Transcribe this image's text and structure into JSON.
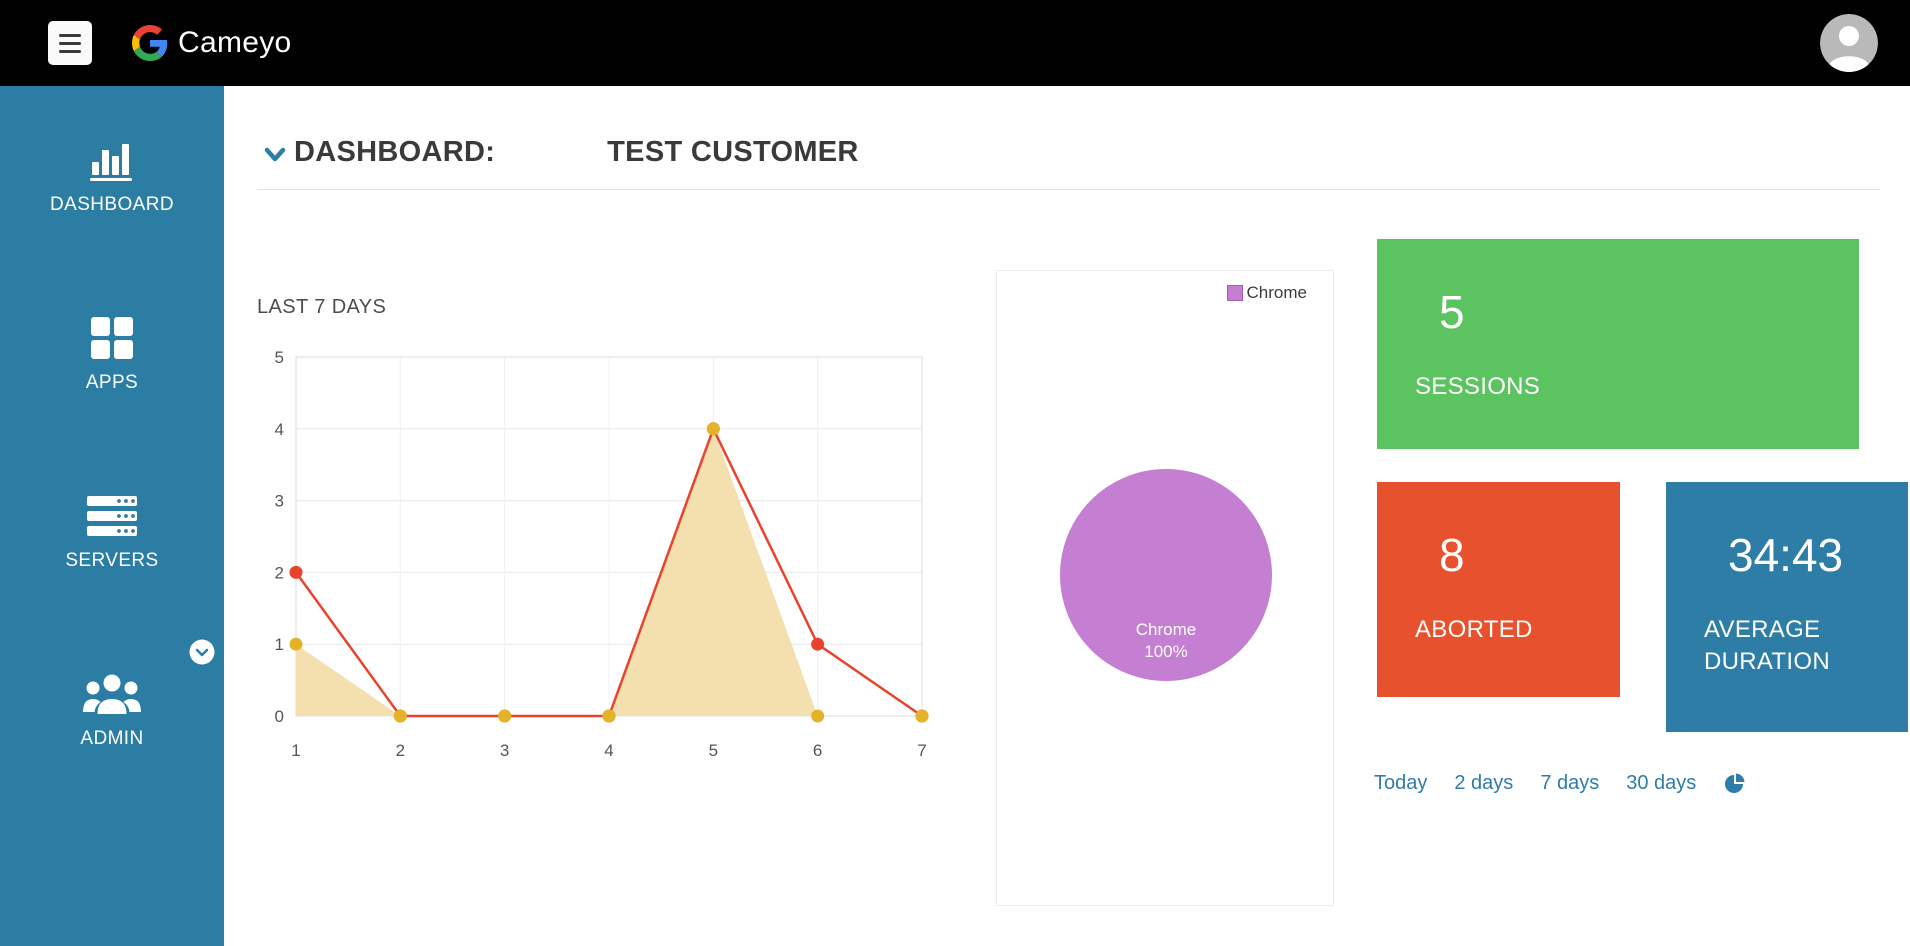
{
  "topbar": {
    "brand": "Cameyo"
  },
  "sidebar": {
    "items": [
      {
        "label": "DASHBOARD"
      },
      {
        "label": "APPS"
      },
      {
        "label": "SERVERS"
      },
      {
        "label": "ADMIN"
      }
    ]
  },
  "header": {
    "title": "DASHBOARD:",
    "customer": "TEST CUSTOMER"
  },
  "stats": {
    "sessions": {
      "value": "5",
      "label": "SESSIONS"
    },
    "aborted": {
      "value": "8",
      "label": "ABORTED"
    },
    "duration": {
      "value": "34:43",
      "label": "AVERAGE DURATION"
    }
  },
  "range_links": [
    "Today",
    "2 days",
    "7 days",
    "30 days"
  ],
  "colors": {
    "sidebar": "#2b7da3",
    "green": "#5bc35f",
    "red": "#e8512d",
    "blue": "#2e7da6",
    "purple": "#c57fd2",
    "link": "#2f7cab"
  },
  "chart_data": [
    {
      "type": "area",
      "title": "LAST 7 DAYS",
      "x": [
        1,
        2,
        3,
        4,
        5,
        6,
        7
      ],
      "xlabel": "",
      "ylabel": "",
      "ylim": [
        0,
        5
      ],
      "yticks": [
        0,
        1,
        2,
        3,
        4,
        5
      ],
      "grid": true,
      "legend_position": "none",
      "series": [
        {
          "name": "yellow-area-series",
          "style": "area",
          "values": [
            1,
            0,
            0,
            0,
            4,
            0,
            0
          ],
          "fill": "#f3dda6",
          "dot": "#e5b32a"
        },
        {
          "name": "red-line-series",
          "style": "line",
          "values": [
            2,
            0,
            0,
            0,
            4,
            1,
            0
          ],
          "color": "#e8432d",
          "dot": "#e8432d"
        }
      ]
    },
    {
      "type": "pie",
      "legend_position": "top-right",
      "slices": [
        {
          "label": "Chrome",
          "value": 100,
          "color": "#c57fd2"
        }
      ],
      "center_label": [
        "Chrome",
        "100%"
      ]
    }
  ]
}
